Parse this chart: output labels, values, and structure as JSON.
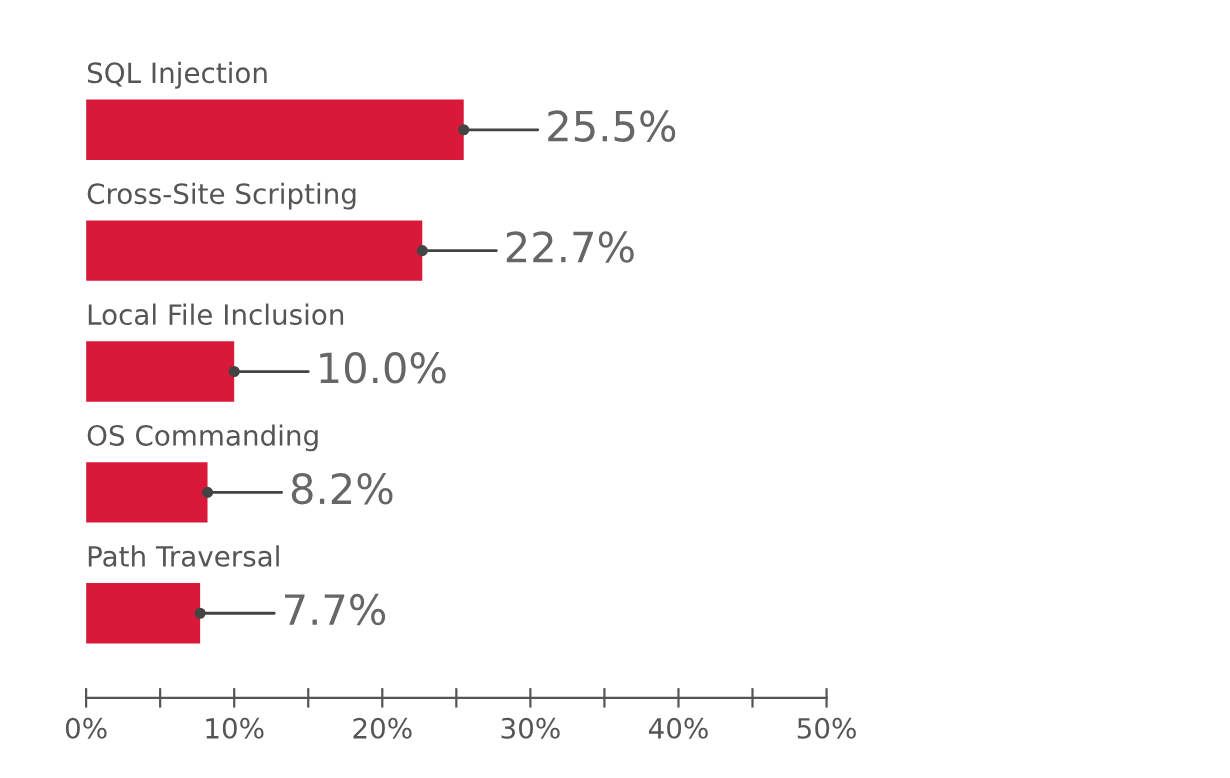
{
  "chart_data": {
    "type": "bar",
    "orientation": "horizontal",
    "categories": [
      "SQL Injection",
      "Cross-Site Scripting",
      "Local File Inclusion",
      "OS Commanding",
      "Path Traversal"
    ],
    "values": [
      25.5,
      22.7,
      10.0,
      8.2,
      7.7
    ],
    "value_labels": [
      "25.5%",
      "22.7%",
      "10.0%",
      "8.2%",
      "7.7%"
    ],
    "color": "#d8193a",
    "xlim": [
      0,
      50
    ],
    "xticks": [
      {
        "value": 0,
        "label": "0%"
      },
      {
        "value": 5,
        "label": null
      },
      {
        "value": 10,
        "label": "10%"
      },
      {
        "value": 15,
        "label": null
      },
      {
        "value": 20,
        "label": "20%"
      },
      {
        "value": 25,
        "label": null
      },
      {
        "value": 30,
        "label": "30%"
      },
      {
        "value": 35,
        "label": null
      },
      {
        "value": 40,
        "label": "40%"
      },
      {
        "value": 45,
        "label": null
      },
      {
        "value": 50,
        "label": "50%"
      }
    ],
    "grid": false,
    "legend": false
  }
}
